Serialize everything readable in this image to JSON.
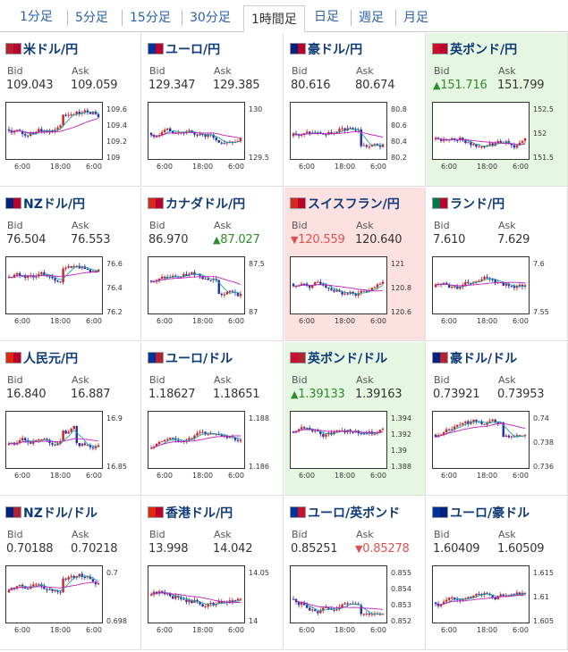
{
  "tabs": [
    "1分足",
    "5分足",
    "15分足",
    "30分足",
    "1時間足",
    "日足",
    "週足",
    "月足"
  ],
  "active_tab": "1時間足",
  "bid_label": "Bid",
  "ask_label": "Ask",
  "x_ticks": [
    "6:00",
    "18:00",
    "6:00"
  ],
  "pairs": [
    {
      "name": "米ドル/円",
      "bid": "109.043",
      "ask": "109.059",
      "flags": [
        "#b22234",
        "#bc002d"
      ],
      "highlight": "",
      "bid_dir": "",
      "ask_dir": "",
      "y_ticks": [
        "109.6",
        "109.4",
        "109.2",
        "109"
      ],
      "seed": 1
    },
    {
      "name": "ユーロ/円",
      "bid": "129.347",
      "ask": "129.385",
      "flags": [
        "#003399",
        "#bc002d"
      ],
      "highlight": "",
      "bid_dir": "",
      "ask_dir": "",
      "y_ticks": [
        "130",
        "129.5"
      ],
      "seed": 2
    },
    {
      "name": "豪ドル/円",
      "bid": "80.616",
      "ask": "80.674",
      "flags": [
        "#00247d",
        "#bc002d"
      ],
      "highlight": "",
      "bid_dir": "",
      "ask_dir": "",
      "y_ticks": [
        "80.8",
        "80.6",
        "80.4",
        "80.2"
      ],
      "seed": 3
    },
    {
      "name": "英ポンド/円",
      "bid": "151.716",
      "ask": "151.799",
      "flags": [
        "#c8102e",
        "#bc002d"
      ],
      "highlight": "green",
      "bid_dir": "up",
      "ask_dir": "",
      "y_ticks": [
        "152.5",
        "152",
        "151.5"
      ],
      "seed": 4
    },
    {
      "name": "NZドル/円",
      "bid": "76.504",
      "ask": "76.553",
      "flags": [
        "#00247d",
        "#bc002d"
      ],
      "highlight": "",
      "bid_dir": "",
      "ask_dir": "",
      "y_ticks": [
        "76.6",
        "76.4",
        "76.2"
      ],
      "seed": 5
    },
    {
      "name": "カナダドル/円",
      "bid": "86.970",
      "ask": "87.027",
      "flags": [
        "#d52b1e",
        "#bc002d"
      ],
      "highlight": "",
      "bid_dir": "",
      "ask_dir": "up",
      "y_ticks": [
        "87.5",
        "87"
      ],
      "seed": 6
    },
    {
      "name": "スイスフラン/円",
      "bid": "120.559",
      "ask": "120.640",
      "flags": [
        "#d52b1e",
        "#bc002d"
      ],
      "highlight": "red",
      "bid_dir": "down",
      "ask_dir": "",
      "y_ticks": [
        "121",
        "120.8",
        "120.6"
      ],
      "seed": 7
    },
    {
      "name": "ランド/円",
      "bid": "7.610",
      "ask": "7.629",
      "flags": [
        "#007a4d",
        "#bc002d"
      ],
      "highlight": "",
      "bid_dir": "",
      "ask_dir": "",
      "y_ticks": [
        "7.6",
        "7.55"
      ],
      "seed": 8
    },
    {
      "name": "人民元/円",
      "bid": "16.840",
      "ask": "16.887",
      "flags": [
        "#de2910",
        "#bc002d"
      ],
      "highlight": "",
      "bid_dir": "",
      "ask_dir": "",
      "y_ticks": [
        "16.9",
        "16.85"
      ],
      "seed": 9
    },
    {
      "name": "ユーロ/ドル",
      "bid": "1.18627",
      "ask": "1.18651",
      "flags": [
        "#003399",
        "#b22234"
      ],
      "highlight": "",
      "bid_dir": "",
      "ask_dir": "",
      "y_ticks": [
        "1.188",
        "1.186"
      ],
      "seed": 10
    },
    {
      "name": "英ポンド/ドル",
      "bid": "1.39133",
      "ask": "1.39163",
      "flags": [
        "#c8102e",
        "#b22234"
      ],
      "highlight": "green",
      "bid_dir": "up",
      "ask_dir": "",
      "y_ticks": [
        "1.394",
        "1.392",
        "1.39",
        "1.388"
      ],
      "seed": 11
    },
    {
      "name": "豪ドル/ドル",
      "bid": "0.73921",
      "ask": "0.73953",
      "flags": [
        "#00247d",
        "#b22234"
      ],
      "highlight": "",
      "bid_dir": "",
      "ask_dir": "",
      "y_ticks": [
        "0.74",
        "0.738",
        "0.736"
      ],
      "seed": 12
    },
    {
      "name": "NZドル/ドル",
      "bid": "0.70188",
      "ask": "0.70218",
      "flags": [
        "#00247d",
        "#b22234"
      ],
      "highlight": "",
      "bid_dir": "",
      "ask_dir": "",
      "y_ticks": [
        "0.7",
        "0.698"
      ],
      "seed": 13
    },
    {
      "name": "香港ドル/円",
      "bid": "13.998",
      "ask": "14.042",
      "flags": [
        "#de2910",
        "#bc002d"
      ],
      "highlight": "",
      "bid_dir": "",
      "ask_dir": "",
      "y_ticks": [
        "14.05",
        "14"
      ],
      "seed": 14
    },
    {
      "name": "ユーロ/英ポンド",
      "bid": "0.85251",
      "ask": "0.85278",
      "flags": [
        "#003399",
        "#c8102e"
      ],
      "highlight": "",
      "bid_dir": "",
      "ask_dir": "down",
      "y_ticks": [
        "0.855",
        "0.854",
        "0.853",
        "0.852"
      ],
      "seed": 15
    },
    {
      "name": "ユーロ/豪ドル",
      "bid": "1.60409",
      "ask": "1.60509",
      "flags": [
        "#003399",
        "#00247d"
      ],
      "highlight": "",
      "bid_dir": "",
      "ask_dir": "",
      "y_ticks": [
        "1.615",
        "1.61",
        "1.605"
      ],
      "seed": 16
    }
  ]
}
